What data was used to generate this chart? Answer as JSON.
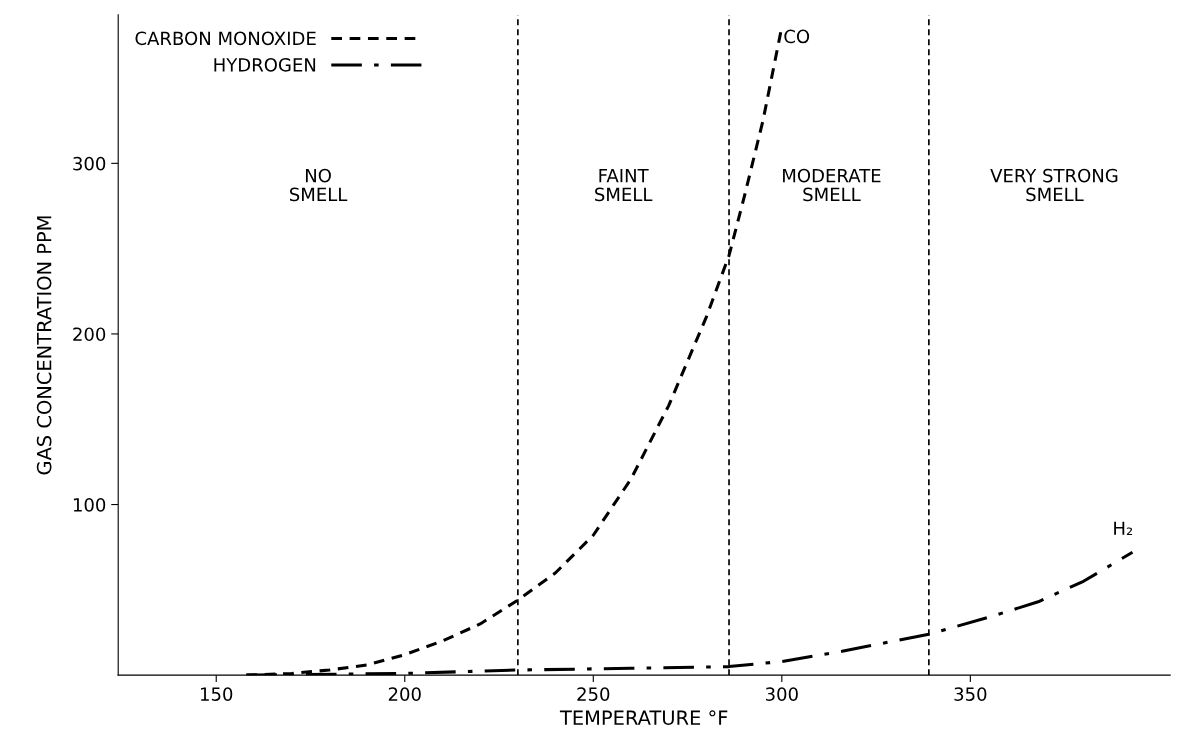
{
  "chart_data": {
    "type": "line",
    "xlabel": "TEMPERATURE °F",
    "ylabel": "GAS CONCENTRATION PPM",
    "xlim": [
      124,
      403
    ],
    "ylim": [
      0,
      387
    ],
    "xticks": [
      150,
      200,
      250,
      300,
      350
    ],
    "yticks": [
      100,
      200,
      300
    ],
    "grid": false,
    "legend": "top left",
    "marker": "none",
    "series": [
      {
        "name": "CARBON MONOXIDE",
        "color": "#000000",
        "line_style": "dashed",
        "x": [
          158,
          170,
          180,
          190,
          200,
          210,
          220,
          230,
          240,
          250,
          260,
          270,
          280,
          286,
          290,
          295,
          300
        ],
        "values": [
          0,
          1,
          3,
          6,
          12,
          20,
          30,
          44,
          60,
          82,
          115,
          158,
          210,
          246,
          280,
          325,
          380
        ]
      },
      {
        "name": "HYDROGEN",
        "color": "#000000",
        "line_style": "dashdot",
        "x": [
          158,
          200,
          230,
          260,
          286,
          300,
          316,
          339,
          355,
          368,
          380,
          393
        ],
        "values": [
          0,
          1,
          3,
          4,
          5,
          8,
          14,
          24,
          34,
          43,
          55,
          72
        ]
      }
    ],
    "ref_lines": [
      {
        "axis": "x",
        "value": 230,
        "color": "#000000",
        "line_style": "dashed"
      },
      {
        "axis": "x",
        "value": 286,
        "color": "#000000",
        "line_style": "dashed"
      },
      {
        "axis": "x",
        "value": 339,
        "color": "#000000",
        "line_style": "dashed"
      }
    ],
    "annotations": [
      "CO",
      "H₂",
      "NO\nSMELL",
      "FAINT\nSMELL",
      "MODERATE\nSMELL",
      "VERY STRONG\nSMELL"
    ]
  }
}
